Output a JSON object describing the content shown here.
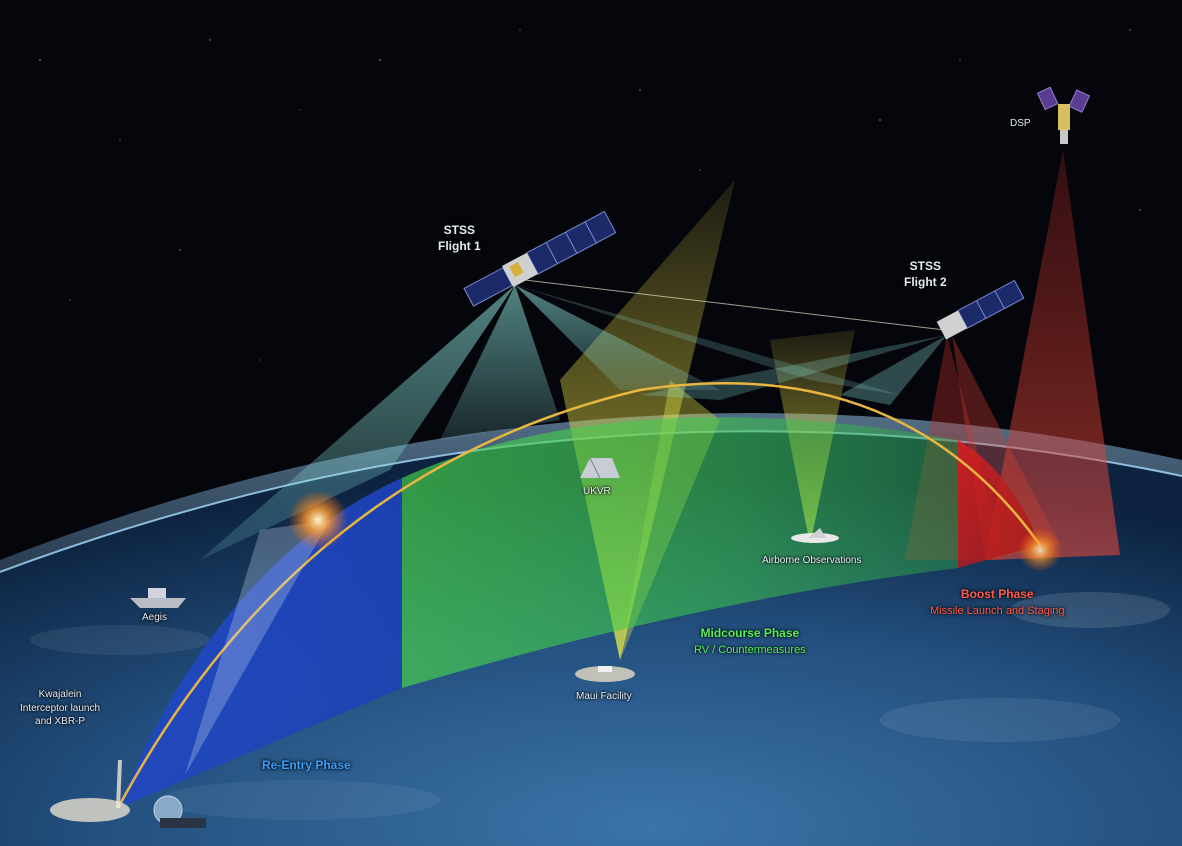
{
  "labels": {
    "dsp": "DSP",
    "stss1_line1": "STSS",
    "stss1_line2": "Flight 1",
    "stss2_line1": "STSS",
    "stss2_line2": "Flight 2",
    "ukv": "UKVR",
    "aegis": "Aegis",
    "airborne": "Airborne Observations",
    "maui": "Maui Facility",
    "kwaj_line1": "Kwajalein",
    "kwaj_line2": "Interceptor launch",
    "kwaj_line3": "and XBR-P"
  },
  "phases": {
    "boost_title": "Boost Phase",
    "boost_sub": "Missile Launch and Staging",
    "mid_title": "Midcourse Phase",
    "mid_sub": "RV / Countermeasures",
    "reentry_title": "Re-Entry Phase"
  },
  "colors": {
    "space": "#05060c",
    "earth_ocean": "#1f4a7a",
    "atmosphere": "#5aa8e0",
    "midcourse_green": "#3fd14a",
    "reentry_blue": "#2a5ad8",
    "boost_red": "#d81e1e",
    "sensor_cyan": "#7fe0d8",
    "sensor_yellow": "#e8f04a",
    "trajectory_gold": "#e8b640",
    "label_boost": "#ff5b4d",
    "label_mid": "#58f05a",
    "label_reentry": "#3aa0ff"
  }
}
